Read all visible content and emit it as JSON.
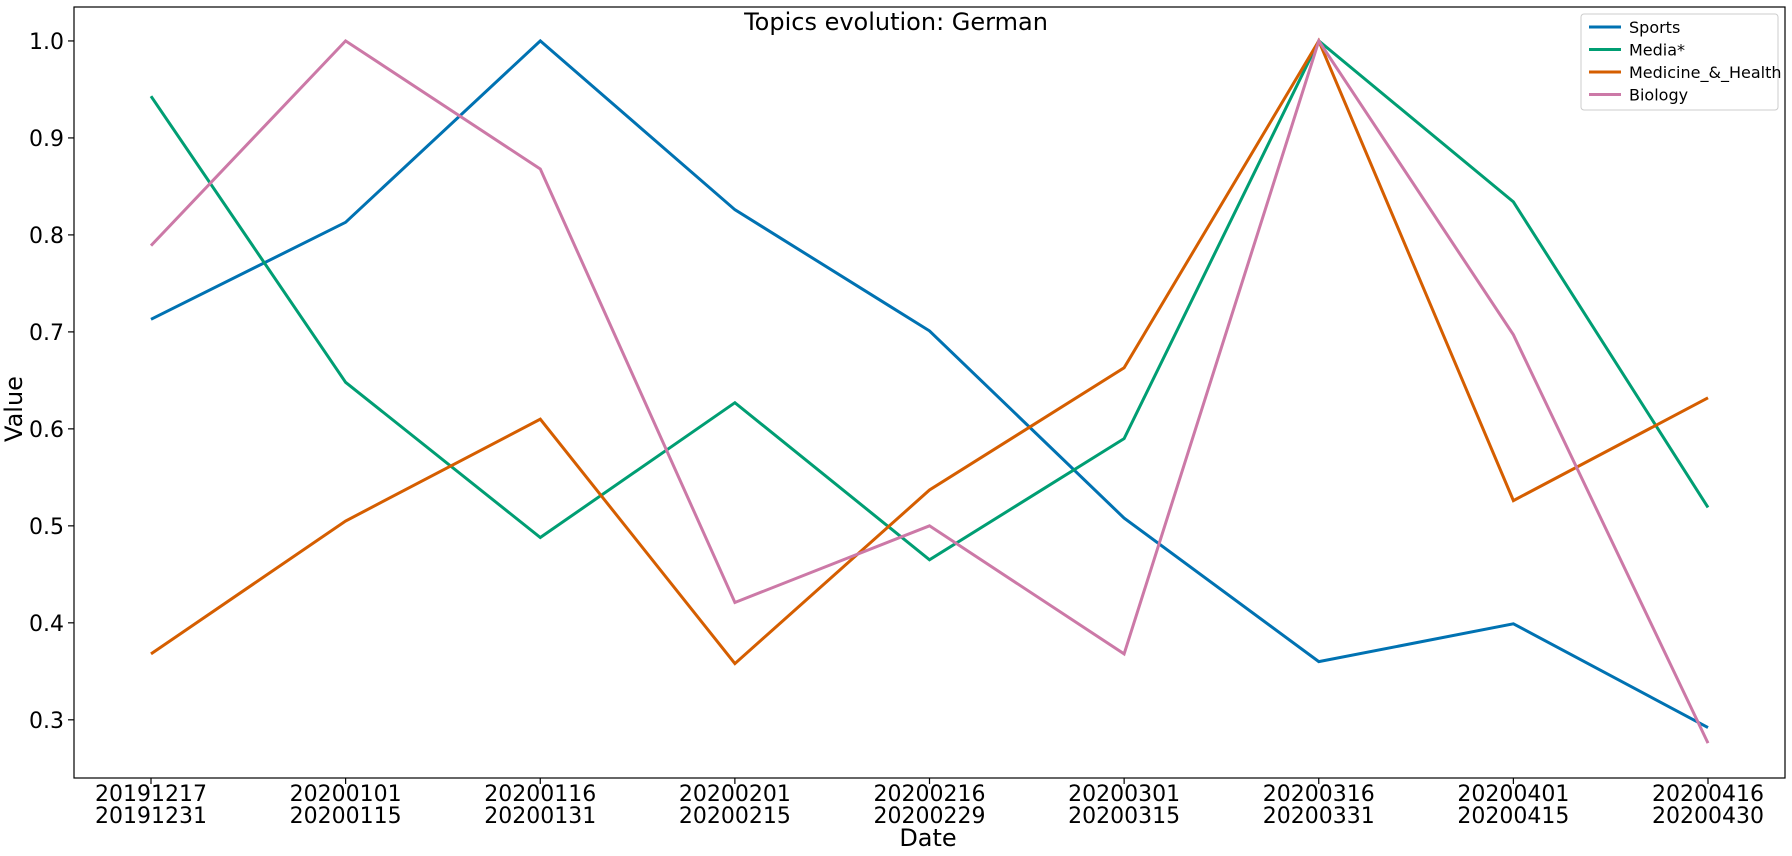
{
  "chart_data": {
    "type": "line",
    "title": "Topics evolution: German",
    "xlabel": "Date",
    "ylabel": "Value",
    "categories": [
      [
        "20191217",
        "20191231"
      ],
      [
        "20200101",
        "20200115"
      ],
      [
        "20200116",
        "20200131"
      ],
      [
        "20200201",
        "20200215"
      ],
      [
        "20200216",
        "20200229"
      ],
      [
        "20200301",
        "20200315"
      ],
      [
        "20200316",
        "20200331"
      ],
      [
        "20200401",
        "20200415"
      ],
      [
        "20200416",
        "20200430"
      ]
    ],
    "yticks": [
      "0.3",
      "0.4",
      "0.5",
      "0.6",
      "0.7",
      "0.8",
      "0.9",
      "1.0"
    ],
    "ylim": [
      0.24,
      1.035
    ],
    "grid": false,
    "legend_position": "top-right",
    "series": [
      {
        "name": "Sports",
        "color": "#0072b2",
        "values": [
          0.713,
          0.813,
          1.0,
          0.826,
          0.701,
          0.508,
          0.36,
          0.399,
          0.292
        ]
      },
      {
        "name": "Media*",
        "color": "#009e73",
        "values": [
          0.943,
          0.648,
          0.488,
          0.627,
          0.465,
          0.59,
          1.0,
          0.834,
          0.519
        ]
      },
      {
        "name": "Medicine_&_Health",
        "color": "#d55e00",
        "values": [
          0.368,
          0.505,
          0.61,
          0.358,
          0.537,
          0.663,
          1.0,
          0.526,
          0.632
        ]
      },
      {
        "name": "Biology",
        "color": "#cc79a7",
        "values": [
          0.789,
          1.0,
          0.868,
          0.421,
          0.5,
          0.368,
          1.0,
          0.697,
          0.276
        ]
      }
    ]
  }
}
